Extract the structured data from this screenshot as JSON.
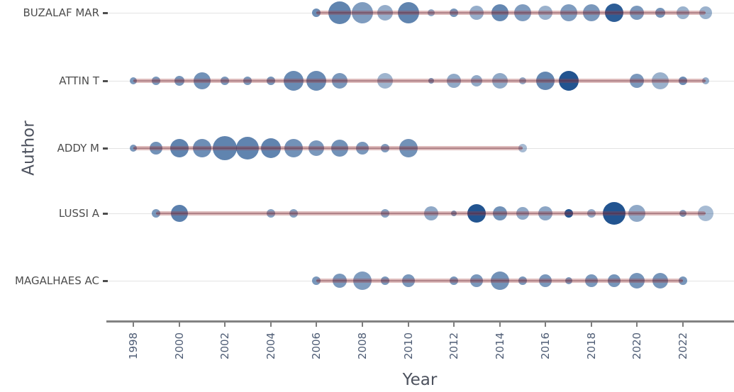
{
  "chart_data": {
    "type": "scatter",
    "subtype": "bubble-timeline",
    "xlabel": "Year",
    "ylabel": "Author",
    "x_range": [
      1997,
      2023.5
    ],
    "x_ticks": [
      1998,
      2000,
      2002,
      2004,
      2006,
      2008,
      2010,
      2012,
      2014,
      2016,
      2018,
      2020,
      2022
    ],
    "grid": "horizontal-only",
    "legend": "none",
    "point_encoding": {
      "size": "bubble radius px",
      "shade": "bubble opacity 0-1"
    },
    "authors": [
      {
        "name": "BUZALAF MAR",
        "line_start": 2006,
        "line_end": 2023,
        "points": [
          [
            2006,
            6,
            0.66
          ],
          [
            2007,
            16,
            0.72
          ],
          [
            2008,
            15,
            0.58
          ],
          [
            2009,
            11,
            0.48
          ],
          [
            2010,
            15,
            0.72
          ],
          [
            2011,
            5,
            0.5
          ],
          [
            2012,
            6,
            0.62
          ],
          [
            2013,
            10,
            0.48
          ],
          [
            2014,
            12,
            0.7
          ],
          [
            2015,
            12,
            0.58
          ],
          [
            2016,
            10,
            0.46
          ],
          [
            2017,
            12,
            0.58
          ],
          [
            2018,
            12,
            0.6
          ],
          [
            2019,
            13,
            0.95
          ],
          [
            2020,
            10,
            0.6
          ],
          [
            2021,
            7,
            0.62
          ],
          [
            2022,
            9,
            0.45
          ],
          [
            2023,
            9,
            0.45
          ]
        ]
      },
      {
        "name": "ATTIN T",
        "line_start": 1998,
        "line_end": 2023,
        "points": [
          [
            1998,
            5,
            0.6
          ],
          [
            1999,
            6,
            0.6
          ],
          [
            2000,
            7,
            0.62
          ],
          [
            2001,
            12,
            0.64
          ],
          [
            2002,
            6,
            0.6
          ],
          [
            2003,
            6,
            0.6
          ],
          [
            2004,
            6,
            0.62
          ],
          [
            2005,
            14,
            0.68
          ],
          [
            2006,
            14,
            0.68
          ],
          [
            2007,
            11,
            0.6
          ],
          [
            2009,
            11,
            0.44
          ],
          [
            2011,
            4,
            0.6
          ],
          [
            2012,
            10,
            0.5
          ],
          [
            2013,
            8,
            0.5
          ],
          [
            2014,
            11,
            0.5
          ],
          [
            2015,
            5,
            0.5
          ],
          [
            2016,
            13,
            0.7
          ],
          [
            2017,
            14,
            1.0
          ],
          [
            2020,
            10,
            0.6
          ],
          [
            2021,
            12,
            0.46
          ],
          [
            2022,
            6,
            0.66
          ],
          [
            2023,
            5,
            0.48
          ]
        ]
      },
      {
        "name": "ADDY M",
        "line_start": 1998,
        "line_end": 2015,
        "points": [
          [
            1998,
            5,
            0.6
          ],
          [
            1999,
            9,
            0.64
          ],
          [
            2000,
            13,
            0.72
          ],
          [
            2001,
            13,
            0.66
          ],
          [
            2002,
            17,
            0.72
          ],
          [
            2003,
            16,
            0.72
          ],
          [
            2004,
            14,
            0.72
          ],
          [
            2005,
            13,
            0.64
          ],
          [
            2006,
            11,
            0.6
          ],
          [
            2007,
            12,
            0.64
          ],
          [
            2008,
            9,
            0.6
          ],
          [
            2009,
            6,
            0.58
          ],
          [
            2010,
            13,
            0.64
          ],
          [
            2015,
            6,
            0.4
          ]
        ]
      },
      {
        "name": "LUSSI A",
        "line_start": 1999,
        "line_end": 2023,
        "points": [
          [
            1999,
            6,
            0.6
          ],
          [
            2000,
            12,
            0.74
          ],
          [
            2004,
            6,
            0.55
          ],
          [
            2005,
            6,
            0.55
          ],
          [
            2009,
            6,
            0.55
          ],
          [
            2011,
            10,
            0.5
          ],
          [
            2012,
            4,
            0.62
          ],
          [
            2013,
            13,
            1.0
          ],
          [
            2014,
            10,
            0.64
          ],
          [
            2015,
            9,
            0.5
          ],
          [
            2016,
            10,
            0.52
          ],
          [
            2017,
            6,
            1.0
          ],
          [
            2018,
            6,
            0.5
          ],
          [
            2019,
            16,
            1.0
          ],
          [
            2020,
            12,
            0.5
          ],
          [
            2022,
            5,
            0.6
          ],
          [
            2023,
            11,
            0.4
          ]
        ]
      },
      {
        "name": "MAGALHAES AC",
        "line_start": 2006,
        "line_end": 2022,
        "points": [
          [
            2006,
            6,
            0.6
          ],
          [
            2007,
            10,
            0.6
          ],
          [
            2008,
            13,
            0.58
          ],
          [
            2009,
            6,
            0.6
          ],
          [
            2010,
            9,
            0.6
          ],
          [
            2012,
            6,
            0.6
          ],
          [
            2013,
            9,
            0.6
          ],
          [
            2014,
            13,
            0.64
          ],
          [
            2015,
            6,
            0.6
          ],
          [
            2016,
            9,
            0.6
          ],
          [
            2017,
            5,
            0.6
          ],
          [
            2018,
            9,
            0.6
          ],
          [
            2019,
            9,
            0.62
          ],
          [
            2020,
            11,
            0.62
          ],
          [
            2021,
            11,
            0.62
          ],
          [
            2022,
            6,
            0.6
          ]
        ]
      }
    ],
    "colors": {
      "bubble_base": "#225490",
      "timeline": "#9e3a3a",
      "gridline": "#e3e3e3",
      "axis_line": "#828282",
      "tick_label": "#4f5d75",
      "row_label": "#4d4d4d",
      "axis_title": "#4d525e"
    }
  }
}
